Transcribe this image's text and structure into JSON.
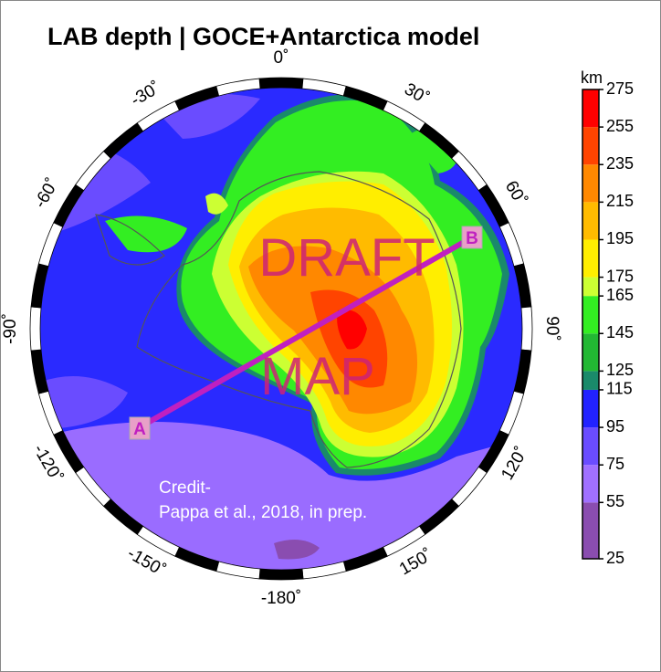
{
  "title": "LAB depth | GOCE+Antarctica model",
  "map": {
    "longitude_labels": [
      "0˚",
      "30˚",
      "60˚",
      "90˚",
      "120˚",
      "150˚",
      "-180˚",
      "-150˚",
      "-120˚",
      "-90˚",
      "-60˚",
      "-30˚"
    ],
    "annotations": {
      "draft": "DRAFT",
      "map": "MAP",
      "point_a": "A",
      "point_b": "B",
      "credit": [
        "Credit-",
        "Pappa et al., 2018, in prep."
      ]
    }
  },
  "colorbar": {
    "label": "km",
    "lim": [
      25,
      275
    ],
    "ticks": [
      25,
      55,
      75,
      95,
      115,
      125,
      145,
      165,
      175,
      195,
      215,
      235,
      255,
      275
    ],
    "colors": [
      "#8a4db0",
      "#a070ff",
      "#6a4cff",
      "#2222ff",
      "#1a8a6a",
      "#22b833",
      "#33ee22",
      "#ccff33",
      "#ffee00",
      "#ffbb00",
      "#ff8800",
      "#ff4400",
      "#ff0000"
    ]
  }
}
